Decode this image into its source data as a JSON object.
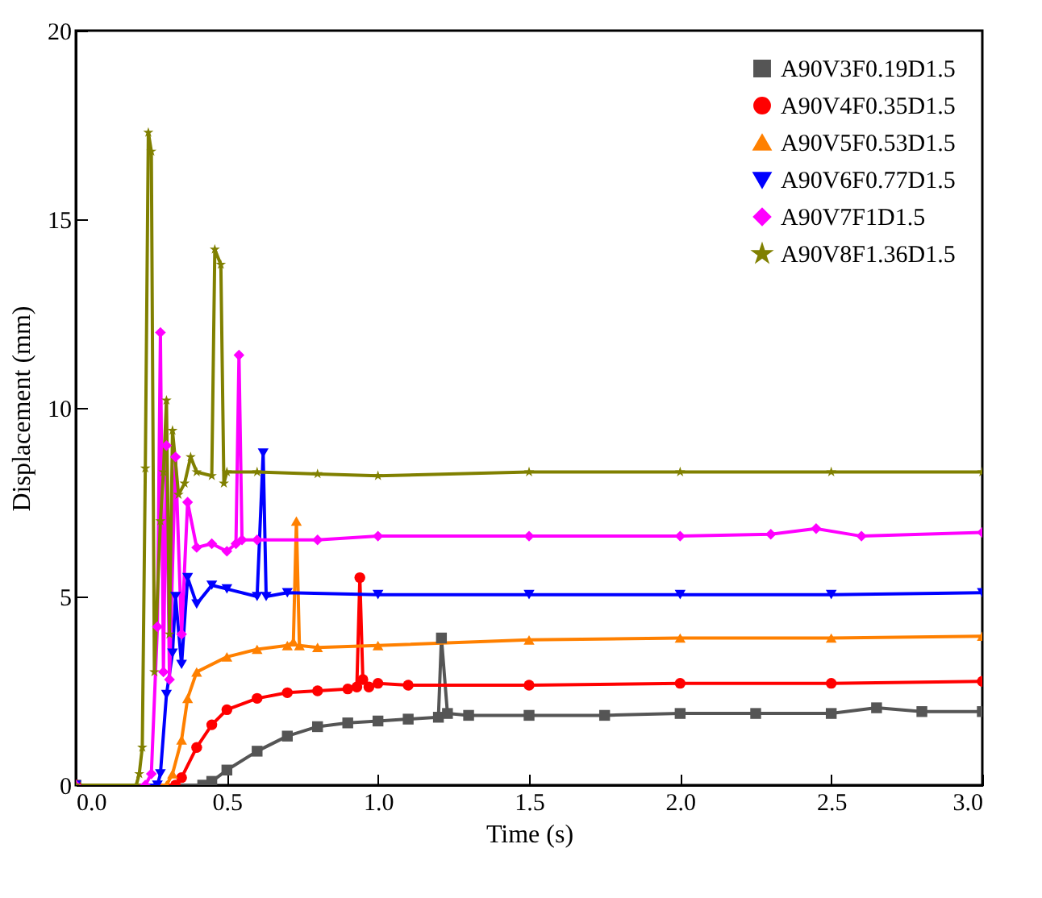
{
  "chart_data": {
    "type": "line",
    "xlabel": "Time (s)",
    "ylabel": "Displacement (mm)",
    "xlim": [
      0,
      3
    ],
    "xticks": [
      {
        "value": 0,
        "label": "0.0"
      },
      {
        "value": 0.5,
        "label": "0.5"
      },
      {
        "value": 1,
        "label": "1.0"
      },
      {
        "value": 1.5,
        "label": "1.5"
      },
      {
        "value": 2,
        "label": "2.0"
      },
      {
        "value": 2.5,
        "label": "2.5"
      },
      {
        "value": 3,
        "label": "3.0"
      }
    ],
    "ylim": [
      0,
      20
    ],
    "yticks": [
      0,
      5,
      10,
      15,
      20
    ],
    "grid": false,
    "legend": "top right",
    "line_style": "solid",
    "series": [
      {
        "name": "A90V3F0.19D1.5",
        "color": "#555555",
        "marker": "square",
        "x": [
          0,
          0.42,
          0.45,
          0.5,
          0.6,
          0.7,
          0.8,
          0.9,
          1.0,
          1.1,
          1.2,
          1.21,
          1.23,
          1.3,
          1.5,
          1.75,
          2.0,
          2.25,
          2.5,
          2.65,
          2.8,
          3.0
        ],
        "values": [
          0,
          0,
          0.1,
          0.4,
          0.9,
          1.3,
          1.55,
          1.65,
          1.7,
          1.75,
          1.8,
          3.9,
          1.9,
          1.85,
          1.85,
          1.85,
          1.9,
          1.9,
          1.9,
          2.05,
          1.95,
          1.95
        ]
      },
      {
        "name": "A90V4F0.35D1.5",
        "color": "#ff0000",
        "marker": "circle",
        "x": [
          0,
          0.33,
          0.35,
          0.4,
          0.45,
          0.5,
          0.6,
          0.7,
          0.8,
          0.9,
          0.93,
          0.94,
          0.95,
          0.97,
          1.0,
          1.1,
          1.5,
          2.0,
          2.5,
          3.0
        ],
        "values": [
          0,
          0,
          0.2,
          1.0,
          1.6,
          2.0,
          2.3,
          2.45,
          2.5,
          2.55,
          2.6,
          5.5,
          2.8,
          2.6,
          2.7,
          2.65,
          2.65,
          2.7,
          2.7,
          2.75
        ]
      },
      {
        "name": "A90V5F0.53D1.5",
        "color": "#ff8000",
        "marker": "triangle-up",
        "x": [
          0,
          0.3,
          0.32,
          0.35,
          0.37,
          0.4,
          0.5,
          0.6,
          0.7,
          0.72,
          0.73,
          0.74,
          0.8,
          1.0,
          1.5,
          2.0,
          2.5,
          3.0
        ],
        "values": [
          0,
          0,
          0.3,
          1.2,
          2.3,
          3.0,
          3.4,
          3.6,
          3.7,
          3.8,
          7.0,
          3.7,
          3.65,
          3.7,
          3.85,
          3.9,
          3.9,
          3.95
        ]
      },
      {
        "name": "A90V6F0.77D1.5",
        "color": "#0000ff",
        "marker": "triangle-down",
        "x": [
          0,
          0.27,
          0.28,
          0.3,
          0.32,
          0.33,
          0.35,
          0.37,
          0.4,
          0.45,
          0.5,
          0.6,
          0.62,
          0.63,
          0.7,
          1.0,
          1.5,
          2.0,
          2.5,
          3.0
        ],
        "values": [
          0,
          0,
          0.3,
          2.4,
          3.5,
          5.0,
          3.2,
          5.5,
          4.8,
          5.3,
          5.2,
          5.0,
          8.8,
          5.0,
          5.1,
          5.05,
          5.05,
          5.05,
          5.05,
          5.1
        ]
      },
      {
        "name": "A90V7F1D1.5",
        "color": "#ff00ff",
        "marker": "diamond",
        "x": [
          0,
          0.23,
          0.25,
          0.27,
          0.28,
          0.29,
          0.3,
          0.31,
          0.33,
          0.35,
          0.37,
          0.4,
          0.45,
          0.5,
          0.53,
          0.54,
          0.55,
          0.6,
          0.8,
          1.0,
          1.5,
          2.0,
          2.3,
          2.45,
          2.6,
          3.0
        ],
        "values": [
          0,
          0,
          0.3,
          4.2,
          12.0,
          3.0,
          9.0,
          2.8,
          8.7,
          4.0,
          7.5,
          6.3,
          6.4,
          6.2,
          6.4,
          11.4,
          6.5,
          6.5,
          6.5,
          6.6,
          6.6,
          6.6,
          6.65,
          6.8,
          6.6,
          6.7
        ]
      },
      {
        "name": "A90V8F1.36D1.5",
        "color": "#808000",
        "marker": "star",
        "x": [
          0,
          0.2,
          0.21,
          0.22,
          0.23,
          0.24,
          0.25,
          0.26,
          0.28,
          0.29,
          0.3,
          0.31,
          0.32,
          0.34,
          0.36,
          0.38,
          0.4,
          0.45,
          0.46,
          0.48,
          0.49,
          0.5,
          0.6,
          0.8,
          1.0,
          1.5,
          2.0,
          2.5,
          3.0
        ],
        "values": [
          0,
          0,
          0.3,
          1.0,
          8.4,
          17.3,
          16.8,
          3.0,
          7.0,
          8.3,
          10.2,
          4.0,
          9.4,
          7.7,
          8.0,
          8.7,
          8.3,
          8.2,
          14.2,
          13.8,
          8.0,
          8.3,
          8.3,
          8.25,
          8.2,
          8.3,
          8.3,
          8.3,
          8.3
        ]
      }
    ]
  }
}
